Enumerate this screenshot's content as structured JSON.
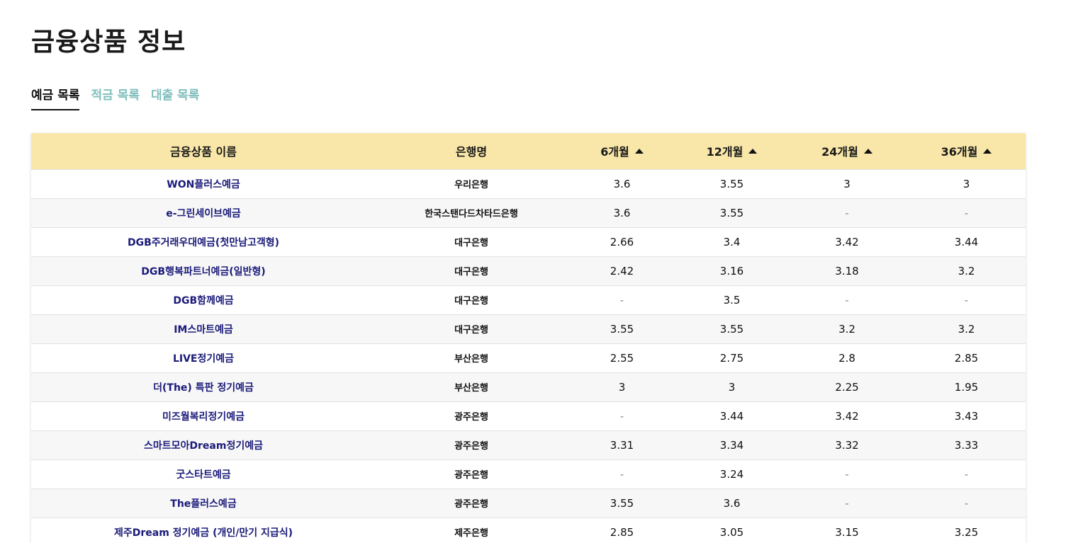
{
  "page": {
    "title": "금융상품 정보"
  },
  "tabs": [
    {
      "label": "예금 목록",
      "active": true
    },
    {
      "label": "적금 목록",
      "active": false
    },
    {
      "label": "대출 목록",
      "active": false
    }
  ],
  "table": {
    "headers": {
      "name": "금융상품 이름",
      "bank": "은행명",
      "m6": "6개월",
      "m12": "12개월",
      "m24": "24개월",
      "m36": "36개월"
    },
    "rows": [
      {
        "name": "WON플러스예금",
        "bank": "우리은행",
        "m6": "3.6",
        "m12": "3.55",
        "m24": "3",
        "m36": "3"
      },
      {
        "name": "e-그린세이브예금",
        "bank": "한국스탠다드차타드은행",
        "m6": "3.6",
        "m12": "3.55",
        "m24": "-",
        "m36": "-"
      },
      {
        "name": "DGB주거래우대예금(첫만남고객형)",
        "bank": "대구은행",
        "m6": "2.66",
        "m12": "3.4",
        "m24": "3.42",
        "m36": "3.44"
      },
      {
        "name": "DGB행복파트너예금(일반형)",
        "bank": "대구은행",
        "m6": "2.42",
        "m12": "3.16",
        "m24": "3.18",
        "m36": "3.2"
      },
      {
        "name": "DGB함께예금",
        "bank": "대구은행",
        "m6": "-",
        "m12": "3.5",
        "m24": "-",
        "m36": "-"
      },
      {
        "name": "IM스마트예금",
        "bank": "대구은행",
        "m6": "3.55",
        "m12": "3.55",
        "m24": "3.2",
        "m36": "3.2"
      },
      {
        "name": "LIVE정기예금",
        "bank": "부산은행",
        "m6": "2.55",
        "m12": "2.75",
        "m24": "2.8",
        "m36": "2.85"
      },
      {
        "name": "더(The) 특판 정기예금",
        "bank": "부산은행",
        "m6": "3",
        "m12": "3",
        "m24": "2.25",
        "m36": "1.95"
      },
      {
        "name": "미즈월복리정기예금",
        "bank": "광주은행",
        "m6": "-",
        "m12": "3.44",
        "m24": "3.42",
        "m36": "3.43"
      },
      {
        "name": "스마트모아Dream정기예금",
        "bank": "광주은행",
        "m6": "3.31",
        "m12": "3.34",
        "m24": "3.32",
        "m36": "3.33"
      },
      {
        "name": "굿스타트예금",
        "bank": "광주은행",
        "m6": "-",
        "m12": "3.24",
        "m24": "-",
        "m36": "-"
      },
      {
        "name": "The플러스예금",
        "bank": "광주은행",
        "m6": "3.55",
        "m12": "3.6",
        "m24": "-",
        "m36": "-"
      },
      {
        "name": "제주Dream 정기예금 (개인/만기 지급식)",
        "bank": "제주은행",
        "m6": "2.85",
        "m12": "3.05",
        "m24": "3.15",
        "m36": "3.25"
      }
    ]
  },
  "icons": {
    "sort": "caret-up-icon"
  },
  "colors": {
    "header_bg": "#f8e7a8",
    "tab_inactive": "#7fbfbd",
    "product_name": "#1b1b7a"
  }
}
